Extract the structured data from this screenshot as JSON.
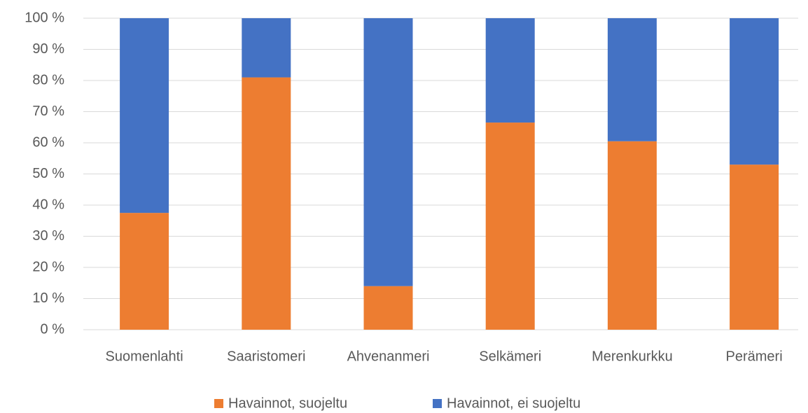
{
  "chart_data": {
    "type": "stacked_bar",
    "categories": [
      "Suomenlahti",
      "Saaristomeri",
      "Ahvenanmeri",
      "Selkämeri",
      "Merenkurkku",
      "Perämeri"
    ],
    "series": [
      {
        "name": "Havainnot, suojeltu",
        "color": "#ed7d31",
        "values": [
          37.5,
          81,
          14,
          66.5,
          60.5,
          53
        ]
      },
      {
        "name": "Havainnot, ei suojeltu",
        "color": "#4472c4",
        "values": [
          62.5,
          19,
          86,
          33.5,
          39.5,
          47
        ]
      }
    ],
    "ylim": [
      0,
      100
    ],
    "yticks": [
      {
        "value": 0,
        "label": "0 %"
      },
      {
        "value": 10,
        "label": "10 %"
      },
      {
        "value": 20,
        "label": "20 %"
      },
      {
        "value": 30,
        "label": "30 %"
      },
      {
        "value": 40,
        "label": "40 %"
      },
      {
        "value": 50,
        "label": "50 %"
      },
      {
        "value": 60,
        "label": "60 %"
      },
      {
        "value": 70,
        "label": "70 %"
      },
      {
        "value": 80,
        "label": "80 %"
      },
      {
        "value": 90,
        "label": "90 %"
      },
      {
        "value": 100,
        "label": "100 %"
      }
    ],
    "grid": true,
    "legend": "bottom"
  }
}
